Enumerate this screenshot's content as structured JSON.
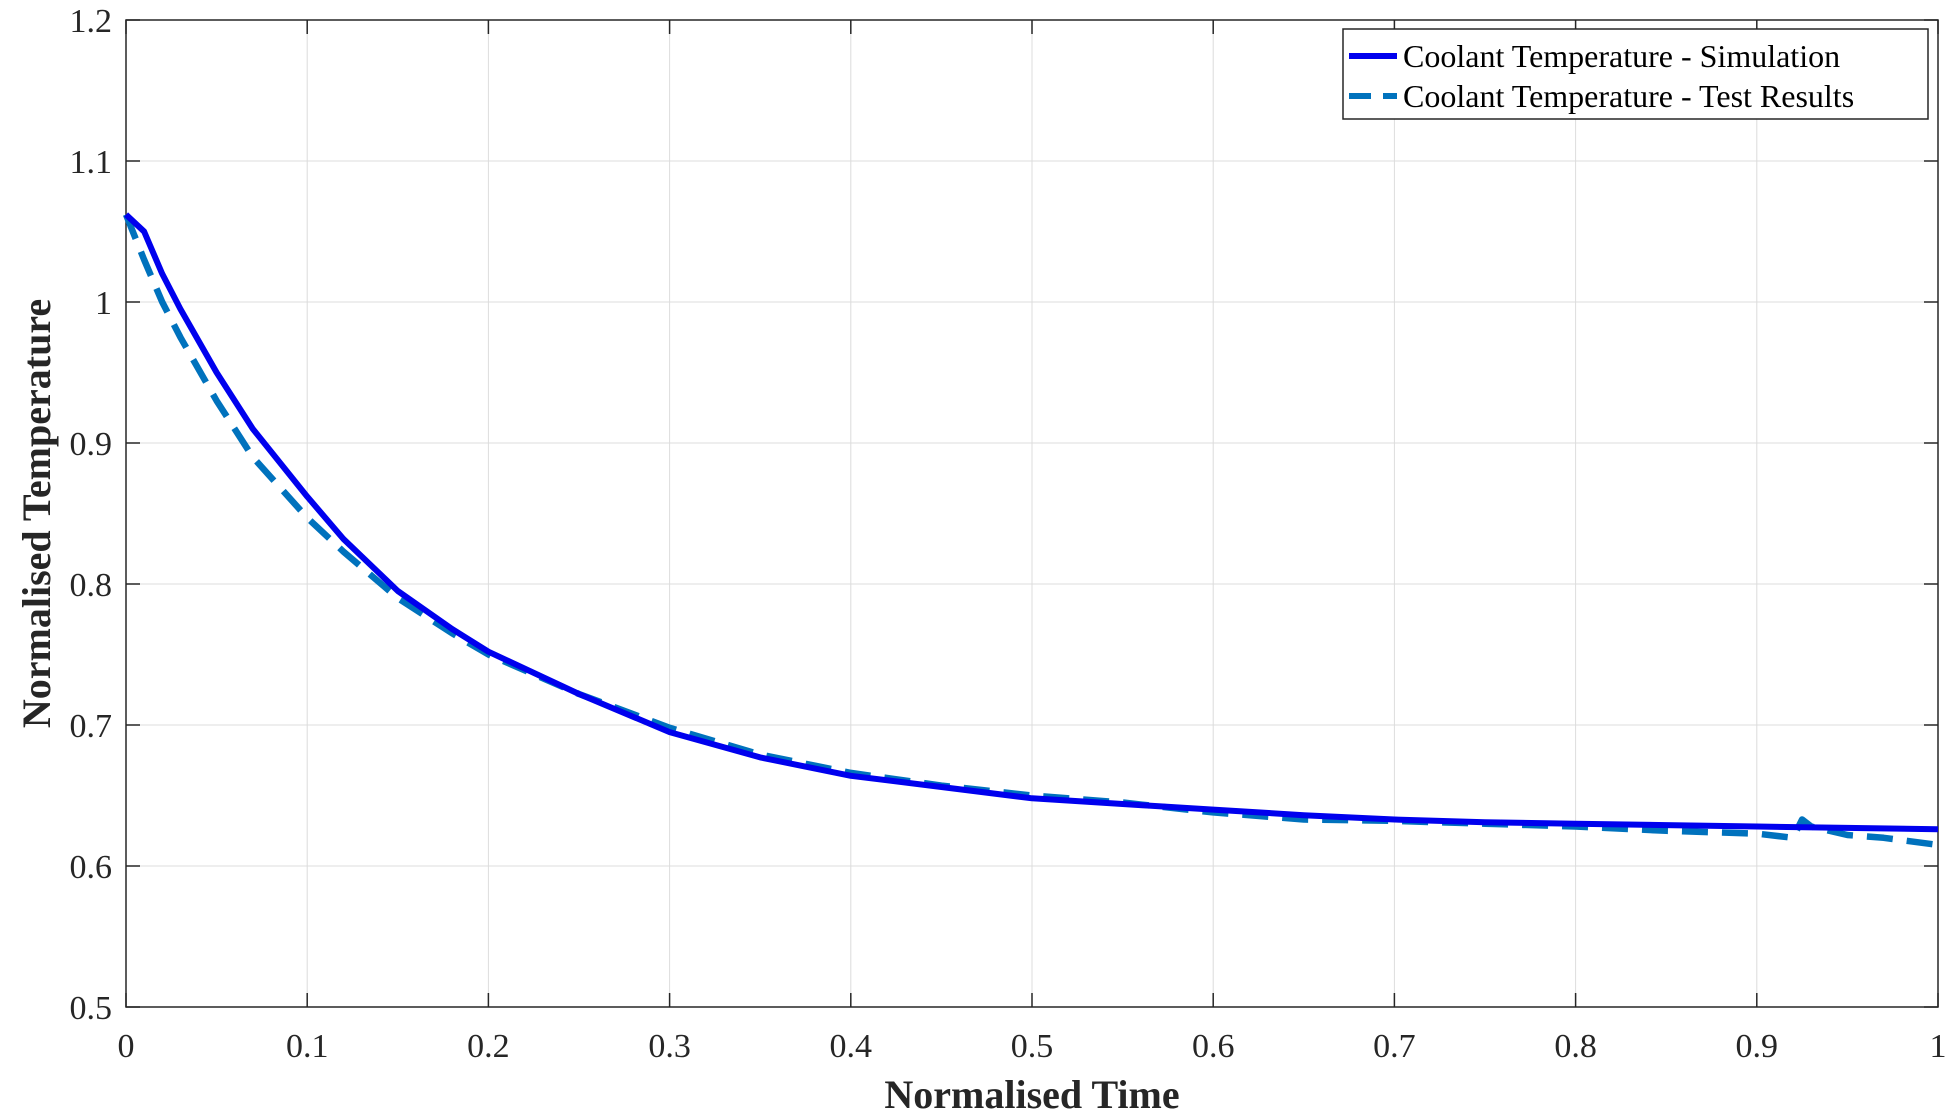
{
  "chart_data": {
    "type": "line",
    "title": "",
    "xlabel": "Normalised Time",
    "ylabel": "Normalised Temperature",
    "xlim": [
      0,
      1
    ],
    "ylim": [
      0.5,
      1.2
    ],
    "x_ticks": [
      "0",
      "0.1",
      "0.2",
      "0.3",
      "0.4",
      "0.5",
      "0.6",
      "0.7",
      "0.8",
      "0.9",
      "1"
    ],
    "y_ticks": [
      "0.5",
      "0.6",
      "0.7",
      "0.8",
      "0.9",
      "1",
      "1.1",
      "1.2"
    ],
    "grid": true,
    "legend_position": "top-right",
    "series": [
      {
        "name": "Coolant Temperature - Simulation",
        "style": "solid",
        "color": "#0000ee",
        "x": [
          0,
          0.01,
          0.02,
          0.03,
          0.05,
          0.07,
          0.1,
          0.12,
          0.15,
          0.18,
          0.2,
          0.25,
          0.3,
          0.35,
          0.4,
          0.45,
          0.5,
          0.55,
          0.6,
          0.65,
          0.7,
          0.75,
          0.8,
          0.85,
          0.9,
          0.95,
          1.0
        ],
        "y": [
          1.062,
          1.05,
          1.02,
          0.995,
          0.95,
          0.91,
          0.862,
          0.832,
          0.795,
          0.768,
          0.752,
          0.722,
          0.695,
          0.677,
          0.664,
          0.656,
          0.648,
          0.644,
          0.64,
          0.636,
          0.633,
          0.631,
          0.63,
          0.629,
          0.628,
          0.627,
          0.626
        ]
      },
      {
        "name": "Coolant Temperature - Test Results",
        "style": "dashed",
        "color": "#0072bd",
        "x": [
          0,
          0.01,
          0.02,
          0.03,
          0.05,
          0.07,
          0.1,
          0.12,
          0.15,
          0.18,
          0.2,
          0.25,
          0.3,
          0.35,
          0.4,
          0.45,
          0.5,
          0.55,
          0.6,
          0.65,
          0.7,
          0.75,
          0.8,
          0.85,
          0.9,
          0.92,
          0.925,
          0.93,
          0.95,
          0.97,
          1.0
        ],
        "y": [
          1.062,
          1.03,
          1.0,
          0.975,
          0.93,
          0.89,
          0.847,
          0.823,
          0.79,
          0.765,
          0.75,
          0.722,
          0.698,
          0.679,
          0.666,
          0.657,
          0.65,
          0.645,
          0.638,
          0.633,
          0.632,
          0.63,
          0.628,
          0.625,
          0.623,
          0.62,
          0.633,
          0.628,
          0.622,
          0.62,
          0.615
        ]
      }
    ]
  }
}
